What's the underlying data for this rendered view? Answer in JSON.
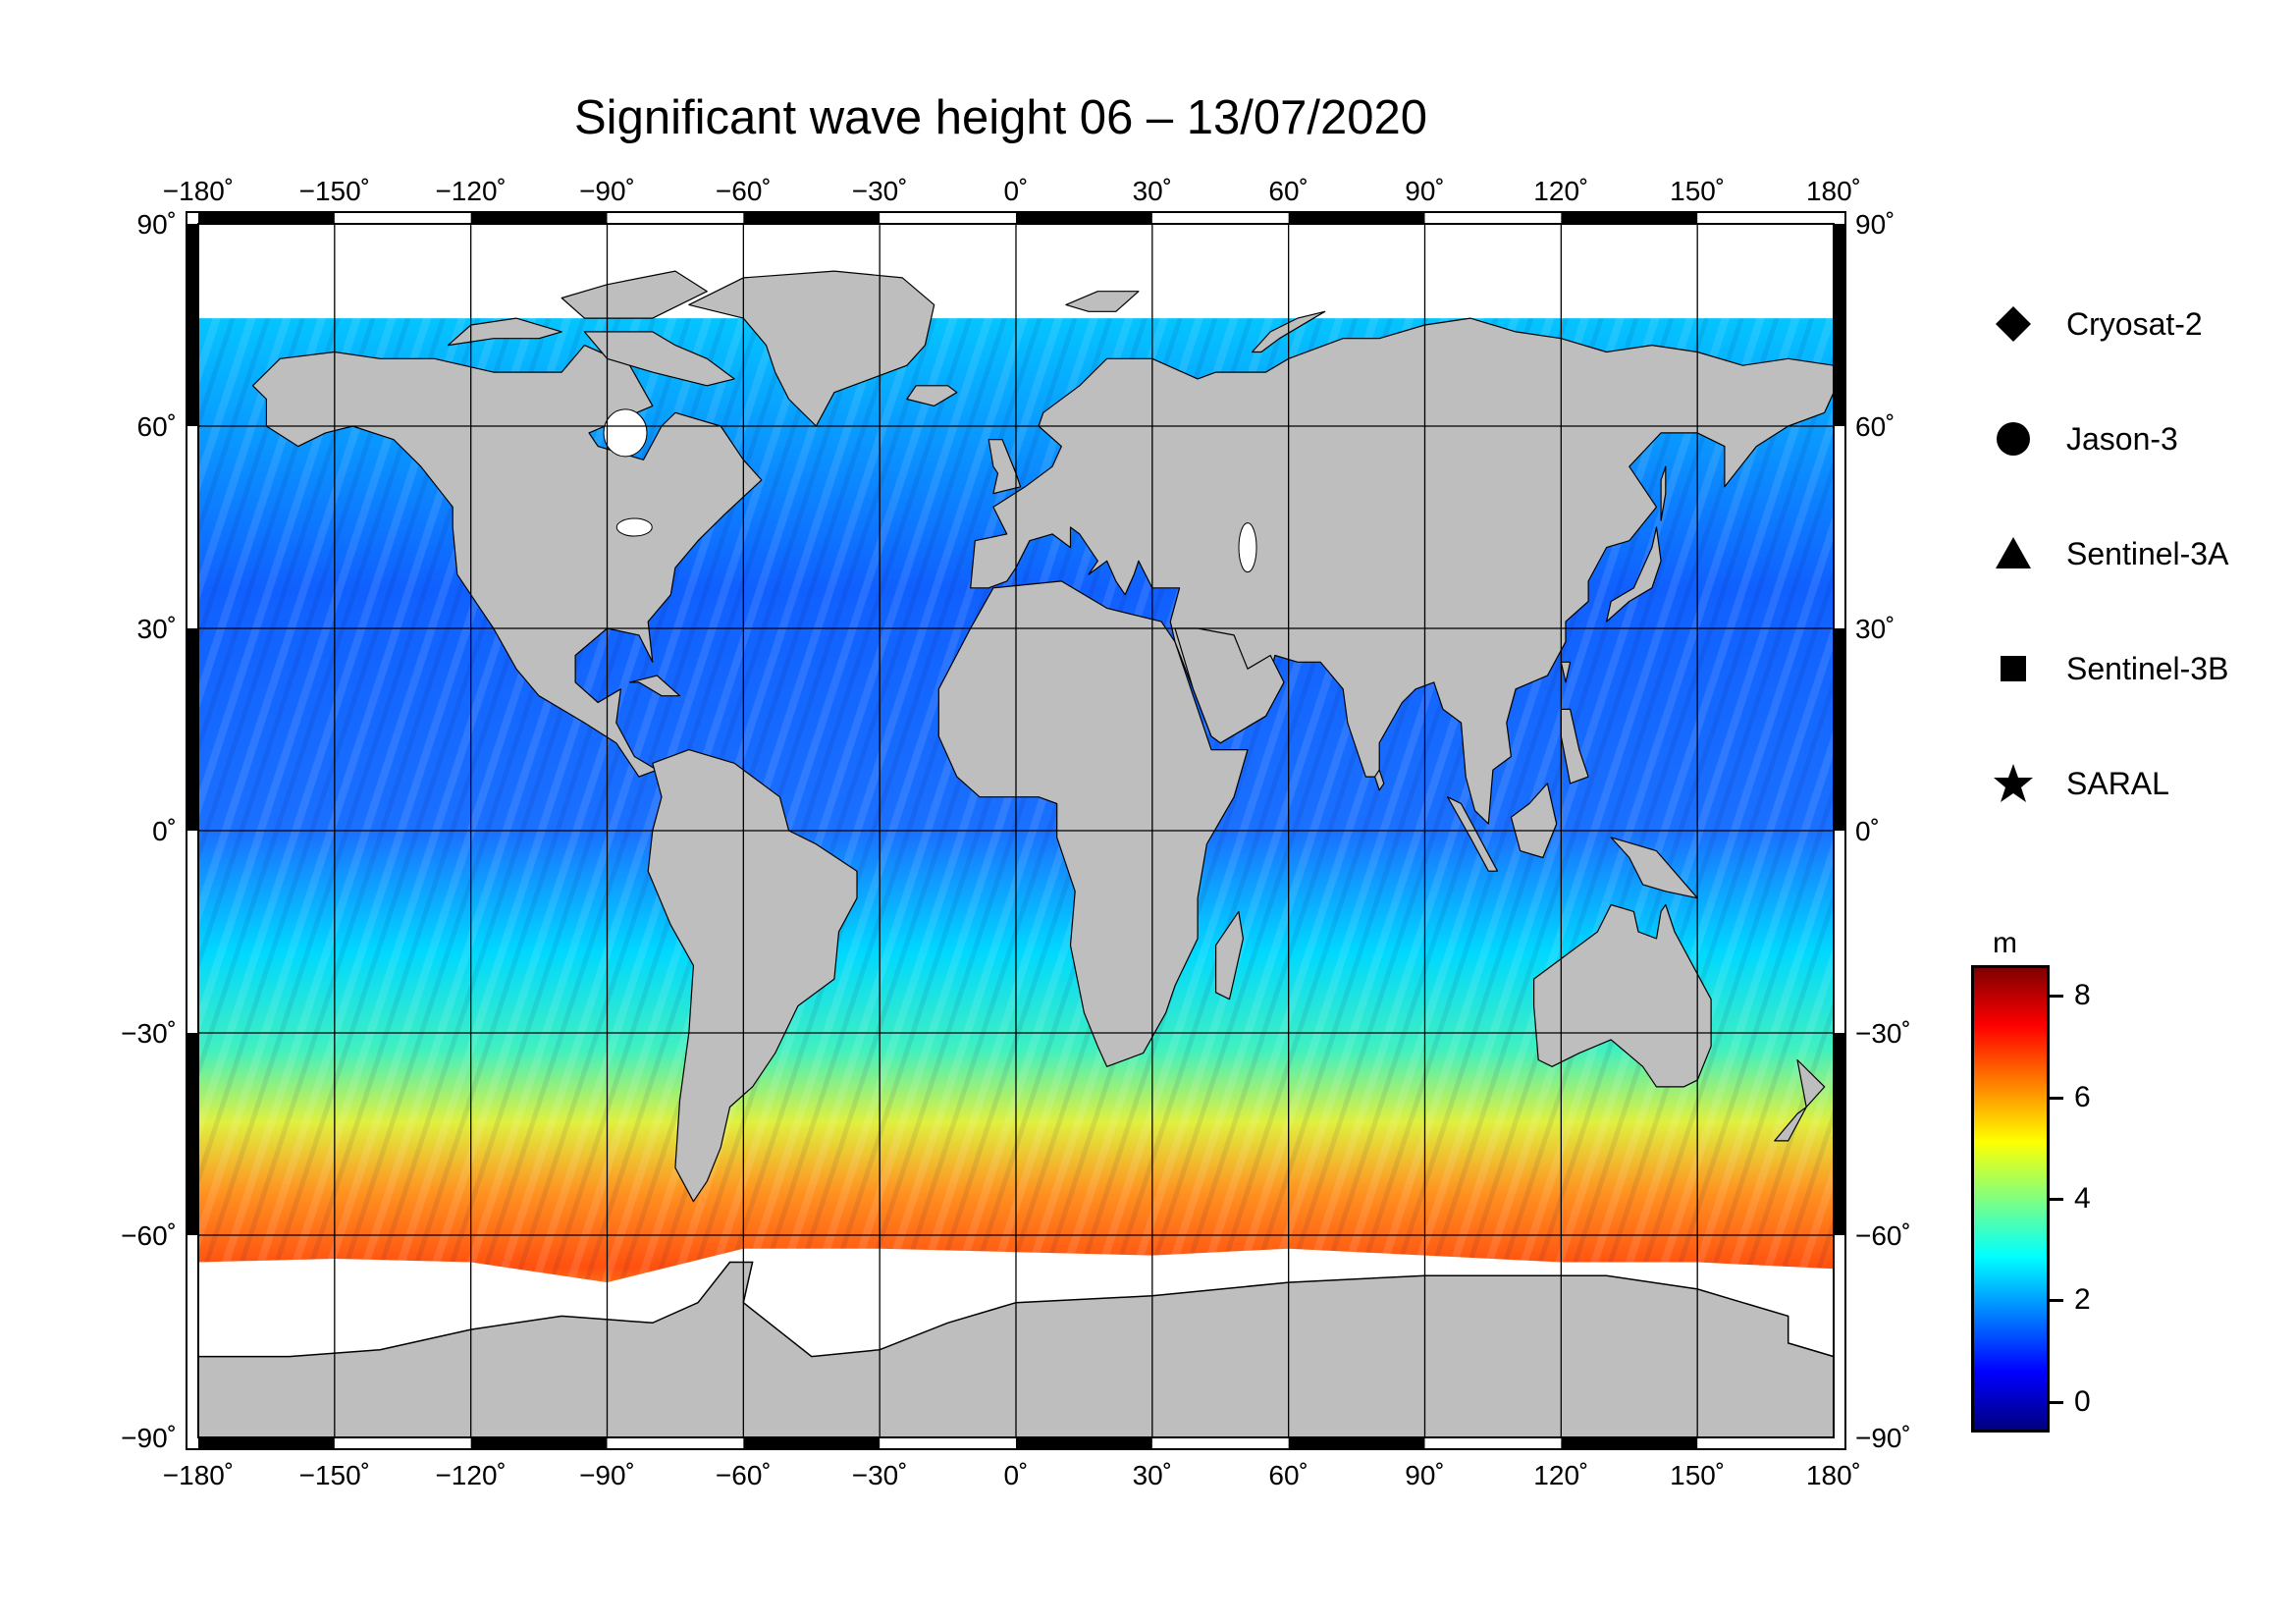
{
  "title": "Significant wave height 06 – 13/07/2020",
  "map": {
    "projection": "equirectangular",
    "lon_range": [
      -180,
      180
    ],
    "lat_range": [
      -90,
      90
    ],
    "lon_ticks": [
      "−180˚",
      "−150˚",
      "−120˚",
      "−90˚",
      "−60˚",
      "−30˚",
      "0˚",
      "30˚",
      "60˚",
      "90˚",
      "120˚",
      "150˚",
      "180˚"
    ],
    "lat_ticks_left": [
      "90˚",
      "60˚",
      "30˚",
      "0˚",
      "−30˚",
      "−60˚",
      "−90˚"
    ],
    "lat_ticks_right": [
      "90˚",
      "60˚",
      "30˚",
      "0˚",
      "−30˚",
      "−60˚",
      "−90˚"
    ],
    "land_color": "#bebebe",
    "ice_color": "#ffffff",
    "grid": true
  },
  "legend": {
    "items": [
      {
        "label": "Cryosat-2",
        "icon": "diamond-icon"
      },
      {
        "label": "Jason-3",
        "icon": "circle-icon"
      },
      {
        "label": "Sentinel-3A",
        "icon": "triangle-icon"
      },
      {
        "label": "Sentinel-3B",
        "icon": "square-icon"
      },
      {
        "label": "SARAL",
        "icon": "star-icon"
      }
    ]
  },
  "colorbar": {
    "unit": "m",
    "range": [
      -0.6,
      8.6
    ],
    "ticks": [
      "8",
      "6",
      "4",
      "2",
      "0"
    ],
    "colors": [
      "#000080",
      "#0000ff",
      "#0080ff",
      "#00ffff",
      "#80ff80",
      "#ffff00",
      "#ff8000",
      "#ff0000",
      "#800000"
    ]
  }
}
